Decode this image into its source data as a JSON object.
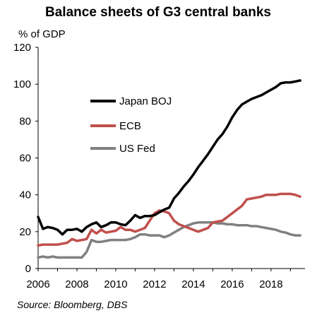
{
  "chart_data": {
    "type": "line",
    "title": "Balance sheets of G3 central banks",
    "ylabel": "% of GDP",
    "xlabel": "",
    "source": "Source: Bloomberg, DBS",
    "xlim": [
      2006,
      2019.75
    ],
    "ylim": [
      0,
      120
    ],
    "x_ticks": [
      2006,
      2008,
      2010,
      2012,
      2014,
      2016,
      2018
    ],
    "y_ticks": [
      0,
      20,
      40,
      60,
      80,
      100,
      120
    ],
    "grid": false,
    "legend_position": "center-left",
    "series": [
      {
        "name": "Japan BOJ",
        "color": "#000000",
        "x": [
          2006.0,
          2006.25,
          2006.5,
          2006.75,
          2007.0,
          2007.25,
          2007.5,
          2007.75,
          2008.0,
          2008.25,
          2008.5,
          2008.75,
          2009.0,
          2009.25,
          2009.5,
          2009.75,
          2010.0,
          2010.25,
          2010.5,
          2010.75,
          2011.0,
          2011.25,
          2011.5,
          2011.75,
          2012.0,
          2012.25,
          2012.5,
          2012.75,
          2013.0,
          2013.25,
          2013.5,
          2013.75,
          2014.0,
          2014.25,
          2014.5,
          2014.75,
          2015.0,
          2015.25,
          2015.5,
          2015.75,
          2016.0,
          2016.25,
          2016.5,
          2016.75,
          2017.0,
          2017.25,
          2017.5,
          2017.75,
          2018.0,
          2018.25,
          2018.5,
          2018.75,
          2019.0,
          2019.25,
          2019.5
        ],
        "values": [
          28,
          21.5,
          22.5,
          22,
          21,
          18.5,
          21,
          21,
          21.5,
          20,
          22.5,
          24,
          25,
          22.5,
          23.5,
          25,
          25,
          24,
          23.5,
          26,
          29,
          27.5,
          28.5,
          28.5,
          29,
          30.5,
          32,
          33,
          38,
          41,
          44.5,
          47.5,
          51,
          55,
          58.5,
          62,
          66,
          70,
          73,
          77,
          82,
          86,
          89,
          90.5,
          92,
          93,
          94,
          95.5,
          97,
          98.5,
          100.5,
          101,
          101,
          101.5,
          102
        ]
      },
      {
        "name": "ECB",
        "color": "#c0504d",
        "x": [
          2006.0,
          2006.25,
          2006.5,
          2006.75,
          2007.0,
          2007.25,
          2007.5,
          2007.75,
          2008.0,
          2008.25,
          2008.5,
          2008.75,
          2009.0,
          2009.25,
          2009.5,
          2009.75,
          2010.0,
          2010.25,
          2010.5,
          2010.75,
          2011.0,
          2011.25,
          2011.5,
          2011.75,
          2012.0,
          2012.25,
          2012.5,
          2012.75,
          2013.0,
          2013.25,
          2013.5,
          2013.75,
          2014.0,
          2014.25,
          2014.5,
          2014.75,
          2015.0,
          2015.25,
          2015.5,
          2015.75,
          2016.0,
          2016.25,
          2016.5,
          2016.75,
          2017.0,
          2017.25,
          2017.5,
          2017.75,
          2018.0,
          2018.25,
          2018.5,
          2018.75,
          2019.0,
          2019.25,
          2019.5
        ],
        "values": [
          12.5,
          13,
          13,
          13,
          13,
          13.5,
          14,
          16,
          15,
          15.5,
          16,
          21,
          19,
          21,
          19.5,
          20,
          20.5,
          22.5,
          21,
          21,
          20,
          21,
          22,
          26,
          30,
          31.5,
          31,
          30,
          26,
          24,
          23,
          22,
          21,
          20,
          21,
          22,
          25,
          25.5,
          26,
          28,
          30,
          32,
          34,
          37.5,
          38,
          38.5,
          39,
          40,
          40,
          40,
          40.5,
          40.5,
          40.5,
          40,
          39
        ]
      },
      {
        "name": "US Fed",
        "color": "#808080",
        "x": [
          2006.0,
          2006.25,
          2006.5,
          2006.75,
          2007.0,
          2007.25,
          2007.5,
          2007.75,
          2008.0,
          2008.25,
          2008.5,
          2008.75,
          2009.0,
          2009.25,
          2009.5,
          2009.75,
          2010.0,
          2010.25,
          2010.5,
          2010.75,
          2011.0,
          2011.25,
          2011.5,
          2011.75,
          2012.0,
          2012.25,
          2012.5,
          2012.75,
          2013.0,
          2013.25,
          2013.5,
          2013.75,
          2014.0,
          2014.25,
          2014.5,
          2014.75,
          2015.0,
          2015.25,
          2015.5,
          2015.75,
          2016.0,
          2016.25,
          2016.5,
          2016.75,
          2017.0,
          2017.25,
          2017.5,
          2017.75,
          2018.0,
          2018.25,
          2018.5,
          2018.75,
          2019.0,
          2019.25,
          2019.5
        ],
        "values": [
          6,
          6.5,
          6,
          6.5,
          6,
          6,
          6,
          6,
          6,
          6,
          9,
          15.5,
          14.5,
          14.5,
          15,
          15.5,
          15.5,
          15.5,
          15.5,
          16,
          17,
          18.5,
          18.5,
          18,
          18,
          18,
          17,
          18,
          19.5,
          21,
          22.5,
          23.5,
          24.5,
          25,
          25,
          25,
          25,
          24.5,
          24.5,
          24,
          24,
          23.5,
          23.5,
          23.5,
          23,
          23,
          22.5,
          22,
          21.5,
          21,
          20,
          19.5,
          18.5,
          18,
          18
        ]
      }
    ]
  }
}
